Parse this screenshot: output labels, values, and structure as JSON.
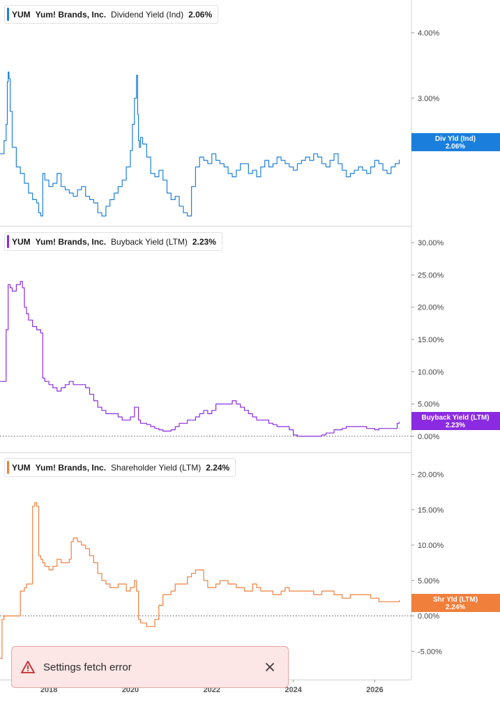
{
  "ticker": "YUM",
  "company": "Yum! Brands, Inc.",
  "toast": {
    "message": "Settings fetch error"
  },
  "colors": {
    "dividend": "#1a7fdc",
    "buyback": "#8a2be2",
    "shareholder": "#f07f3c"
  },
  "chart_data": [
    {
      "type": "line",
      "series_name": "Dividend Yield (Ind)",
      "current_value_label": "2.06%",
      "tag_label": "Div Yld (Ind)",
      "tag_value": "2.06%",
      "y_unit": "%",
      "y_ticks": [
        3.0,
        4.0
      ],
      "y_tick_labels": [
        "3.00%",
        "4.00%"
      ],
      "ylim": [
        1.05,
        4.5
      ],
      "x_ticks": [],
      "x": [
        2016.8,
        2016.9,
        2016.95,
        2016.98,
        2017.0,
        2017.02,
        2017.05,
        2017.1,
        2017.2,
        2017.3,
        2017.4,
        2017.5,
        2017.6,
        2017.7,
        2017.75,
        2017.8,
        2017.85,
        2017.9,
        2018.0,
        2018.1,
        2018.2,
        2018.3,
        2018.4,
        2018.5,
        2018.6,
        2018.7,
        2018.8,
        2018.9,
        2019.0,
        2019.1,
        2019.2,
        2019.3,
        2019.4,
        2019.5,
        2019.6,
        2019.7,
        2019.8,
        2019.9,
        2020.0,
        2020.05,
        2020.1,
        2020.15,
        2020.18,
        2020.2,
        2020.22,
        2020.25,
        2020.3,
        2020.4,
        2020.5,
        2020.6,
        2020.7,
        2020.8,
        2020.9,
        2021.0,
        2021.1,
        2021.2,
        2021.3,
        2021.4,
        2021.5,
        2021.6,
        2021.7,
        2021.8,
        2021.9,
        2022.0,
        2022.1,
        2022.2,
        2022.3,
        2022.4,
        2022.5,
        2022.6,
        2022.7,
        2022.8,
        2022.9,
        2023.0,
        2023.1,
        2023.2,
        2023.3,
        2023.4,
        2023.5,
        2023.6,
        2023.7,
        2023.8,
        2023.9,
        2024.0,
        2024.1,
        2024.2,
        2024.3,
        2024.4,
        2024.5,
        2024.6,
        2024.7,
        2024.8,
        2024.9,
        2025.0,
        2025.1,
        2025.2,
        2025.3,
        2025.4,
        2025.5,
        2025.6,
        2025.7,
        2025.8,
        2025.9,
        2026.0,
        2026.1,
        2026.2,
        2026.3,
        2026.4,
        2026.5,
        2026.6
      ],
      "values": [
        2.15,
        2.35,
        2.6,
        3.25,
        3.4,
        3.3,
        2.8,
        2.25,
        1.95,
        1.85,
        1.7,
        1.55,
        1.45,
        1.4,
        1.25,
        1.2,
        1.85,
        1.75,
        1.65,
        1.7,
        1.85,
        1.65,
        1.6,
        1.55,
        1.5,
        1.6,
        1.65,
        1.5,
        1.45,
        1.4,
        1.25,
        1.2,
        1.35,
        1.45,
        1.55,
        1.65,
        1.75,
        1.95,
        2.2,
        2.6,
        3.0,
        3.35,
        2.75,
        2.35,
        2.25,
        2.4,
        2.3,
        2.1,
        1.85,
        1.8,
        1.9,
        1.75,
        1.55,
        1.45,
        1.5,
        1.35,
        1.25,
        1.2,
        1.65,
        1.95,
        2.1,
        2.05,
        2.0,
        2.15,
        2.05,
        2.0,
        1.95,
        1.85,
        1.8,
        1.9,
        2.0,
        2.0,
        1.85,
        1.9,
        1.8,
        1.95,
        2.05,
        1.95,
        2.0,
        2.1,
        2.05,
        2.0,
        1.95,
        1.9,
        2.0,
        2.05,
        2.1,
        2.05,
        2.15,
        2.1,
        2.0,
        1.95,
        2.05,
        2.15,
        2.0,
        1.9,
        1.8,
        1.85,
        1.9,
        1.95,
        1.9,
        1.85,
        1.95,
        2.05,
        2.0,
        1.9,
        1.85,
        1.95,
        2.0,
        2.06
      ]
    },
    {
      "type": "line",
      "series_name": "Buyback Yield (LTM)",
      "current_value_label": "2.23%",
      "tag_label": "Buyback Yield (LTM)",
      "tag_value": "2.23%",
      "y_unit": "%",
      "y_ticks": [
        0,
        5,
        10,
        15,
        20,
        25,
        30
      ],
      "y_tick_labels": [
        "0.00%",
        "5.00%",
        "10.00%",
        "15.00%",
        "20.00%",
        "25.00%",
        "30.00%"
      ],
      "ylim": [
        -2.5,
        32.5
      ],
      "zero_line": true,
      "x_ticks": [],
      "x": [
        2016.8,
        2016.9,
        2016.95,
        2017.0,
        2017.05,
        2017.1,
        2017.2,
        2017.3,
        2017.35,
        2017.4,
        2017.45,
        2017.5,
        2017.6,
        2017.7,
        2017.8,
        2017.85,
        2017.9,
        2018.0,
        2018.1,
        2018.2,
        2018.3,
        2018.4,
        2018.5,
        2018.6,
        2018.7,
        2018.8,
        2018.9,
        2019.0,
        2019.1,
        2019.2,
        2019.3,
        2019.4,
        2019.5,
        2019.6,
        2019.7,
        2019.8,
        2019.9,
        2020.0,
        2020.1,
        2020.2,
        2020.25,
        2020.3,
        2020.4,
        2020.5,
        2020.6,
        2020.7,
        2020.8,
        2020.9,
        2021.0,
        2021.1,
        2021.2,
        2021.3,
        2021.4,
        2021.5,
        2021.6,
        2021.7,
        2021.8,
        2021.9,
        2022.0,
        2022.1,
        2022.2,
        2022.3,
        2022.4,
        2022.5,
        2022.6,
        2022.7,
        2022.8,
        2022.9,
        2023.0,
        2023.1,
        2023.2,
        2023.3,
        2023.4,
        2023.5,
        2023.6,
        2023.7,
        2023.8,
        2023.9,
        2024.0,
        2024.1,
        2024.2,
        2024.3,
        2024.4,
        2024.5,
        2024.6,
        2024.7,
        2024.8,
        2024.9,
        2025.0,
        2025.1,
        2025.2,
        2025.3,
        2025.4,
        2025.5,
        2025.6,
        2025.7,
        2025.8,
        2025.9,
        2026.0,
        2026.1,
        2026.2,
        2026.3,
        2026.4,
        2026.5,
        2026.55,
        2026.6
      ],
      "values": [
        8.5,
        8.5,
        16.5,
        23.5,
        23.0,
        22.5,
        23.5,
        24.0,
        23.0,
        20.0,
        19.0,
        18.0,
        17.0,
        16.5,
        16.0,
        9.0,
        8.5,
        8.0,
        7.5,
        7.0,
        7.5,
        8.0,
        8.5,
        8.0,
        8.0,
        8.0,
        7.5,
        6.5,
        5.5,
        4.5,
        4.0,
        3.5,
        3.5,
        3.5,
        3.0,
        2.5,
        2.5,
        3.0,
        4.5,
        2.5,
        2.0,
        2.0,
        1.8,
        1.5,
        1.2,
        1.0,
        0.8,
        0.8,
        1.0,
        1.5,
        2.0,
        2.0,
        2.5,
        2.5,
        3.0,
        3.5,
        4.0,
        3.5,
        4.0,
        5.0,
        5.0,
        5.0,
        5.0,
        5.5,
        5.0,
        4.5,
        4.0,
        3.5,
        3.0,
        2.5,
        2.5,
        2.5,
        2.0,
        1.8,
        1.5,
        1.5,
        1.5,
        1.0,
        0.2,
        0.0,
        0.0,
        0.0,
        0.0,
        0.0,
        0.0,
        0.2,
        0.5,
        0.5,
        1.0,
        1.0,
        1.2,
        1.5,
        1.5,
        1.5,
        1.5,
        1.5,
        1.2,
        1.2,
        1.0,
        1.2,
        1.2,
        1.2,
        1.2,
        1.2,
        2.0,
        2.23
      ]
    },
    {
      "type": "line",
      "series_name": "Shareholder Yield (LTM)",
      "current_value_label": "2.24%",
      "tag_label": "Shr Yld (LTM)",
      "tag_value": "2.24%",
      "y_unit": "%",
      "y_ticks": [
        -5,
        0,
        5,
        10,
        15,
        20
      ],
      "y_tick_labels": [
        "-5.00%",
        "0.00%",
        "5.00%",
        "10.00%",
        "15.00%",
        "20.00%"
      ],
      "ylim": [
        -9.0,
        23.0
      ],
      "zero_line": true,
      "x_ticks": [
        2018,
        2020,
        2022,
        2024,
        2026
      ],
      "x_tick_labels": [
        "2018",
        "2020",
        "2022",
        "2024",
        "2026"
      ],
      "x": [
        2016.8,
        2016.85,
        2016.9,
        2017.0,
        2017.1,
        2017.2,
        2017.3,
        2017.4,
        2017.45,
        2017.5,
        2017.6,
        2017.65,
        2017.7,
        2017.75,
        2017.8,
        2017.85,
        2017.9,
        2018.0,
        2018.1,
        2018.2,
        2018.3,
        2018.4,
        2018.5,
        2018.55,
        2018.6,
        2018.7,
        2018.8,
        2018.9,
        2019.0,
        2019.1,
        2019.2,
        2019.3,
        2019.4,
        2019.5,
        2019.6,
        2019.7,
        2019.8,
        2019.9,
        2020.0,
        2020.1,
        2020.15,
        2020.2,
        2020.25,
        2020.3,
        2020.4,
        2020.5,
        2020.6,
        2020.7,
        2020.8,
        2020.9,
        2021.0,
        2021.1,
        2021.2,
        2021.3,
        2021.4,
        2021.5,
        2021.6,
        2021.7,
        2021.8,
        2021.9,
        2022.0,
        2022.1,
        2022.2,
        2022.3,
        2022.4,
        2022.5,
        2022.6,
        2022.7,
        2022.8,
        2022.9,
        2023.0,
        2023.1,
        2023.2,
        2023.3,
        2023.4,
        2023.5,
        2023.6,
        2023.7,
        2023.8,
        2023.9,
        2024.0,
        2024.1,
        2024.2,
        2024.3,
        2024.4,
        2024.5,
        2024.6,
        2024.7,
        2024.8,
        2024.9,
        2025.0,
        2025.1,
        2025.2,
        2025.3,
        2025.4,
        2025.5,
        2025.6,
        2025.7,
        2025.8,
        2025.9,
        2026.0,
        2026.1,
        2026.2,
        2026.3,
        2026.4,
        2026.5,
        2026.6
      ],
      "values": [
        -6.0,
        -0.5,
        0.0,
        0.0,
        0.0,
        0.0,
        3.5,
        4.0,
        4.5,
        4.5,
        15.5,
        16.0,
        15.5,
        8.5,
        8.0,
        7.5,
        7.0,
        6.5,
        7.0,
        8.0,
        7.5,
        7.5,
        8.0,
        10.5,
        11.0,
        10.5,
        10.0,
        9.5,
        8.5,
        7.5,
        6.0,
        5.0,
        4.5,
        4.0,
        4.0,
        4.5,
        4.5,
        3.5,
        4.0,
        5.0,
        3.5,
        -0.5,
        -1.0,
        -1.0,
        -1.5,
        -1.5,
        -0.5,
        1.5,
        3.0,
        3.0,
        3.5,
        4.5,
        4.5,
        4.5,
        5.5,
        6.0,
        6.5,
        6.5,
        5.0,
        4.0,
        4.0,
        4.5,
        5.0,
        5.0,
        4.5,
        4.5,
        4.0,
        4.0,
        3.5,
        3.5,
        4.5,
        4.0,
        3.5,
        3.5,
        3.5,
        3.0,
        3.0,
        3.5,
        4.0,
        3.5,
        3.5,
        3.5,
        3.5,
        3.5,
        3.5,
        3.0,
        3.0,
        3.5,
        3.5,
        3.5,
        3.0,
        3.0,
        2.5,
        2.5,
        3.0,
        3.0,
        3.0,
        3.0,
        3.0,
        2.5,
        2.5,
        2.0,
        2.0,
        2.0,
        2.0,
        2.0,
        2.24
      ]
    }
  ]
}
